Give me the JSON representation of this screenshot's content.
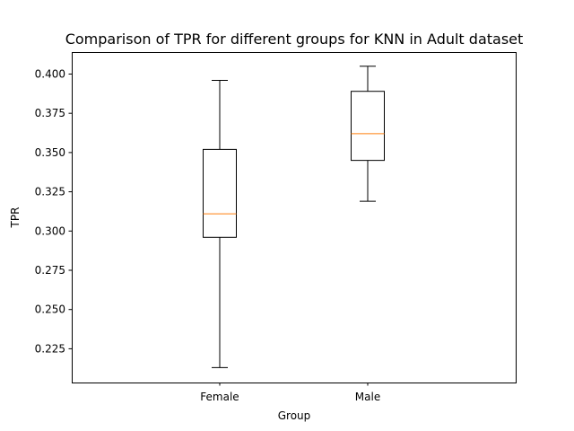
{
  "chart_data": {
    "type": "box",
    "title": "Comparison of TPR for different groups for KNN in Adult dataset",
    "xlabel": "Group",
    "ylabel": "TPR",
    "ylim": [
      0.2035,
      0.414
    ],
    "yticks": [
      0.225,
      0.25,
      0.275,
      0.3,
      0.325,
      0.35,
      0.375,
      0.4
    ],
    "ytick_labels": [
      "0.225",
      "0.250",
      "0.275",
      "0.300",
      "0.325",
      "0.350",
      "0.375",
      "0.400"
    ],
    "grid": false,
    "categories": [
      "Female",
      "Male"
    ],
    "boxes": [
      {
        "category": "Female",
        "whisker_low": 0.213,
        "q1": 0.296,
        "median": 0.311,
        "q3": 0.352,
        "whisker_high": 0.396
      },
      {
        "category": "Male",
        "whisker_low": 0.319,
        "q1": 0.345,
        "median": 0.362,
        "q3": 0.389,
        "whisker_high": 0.405
      }
    ],
    "colors": {
      "box": "#000000",
      "median": "#ff7f0e",
      "axis": "#000000"
    }
  }
}
